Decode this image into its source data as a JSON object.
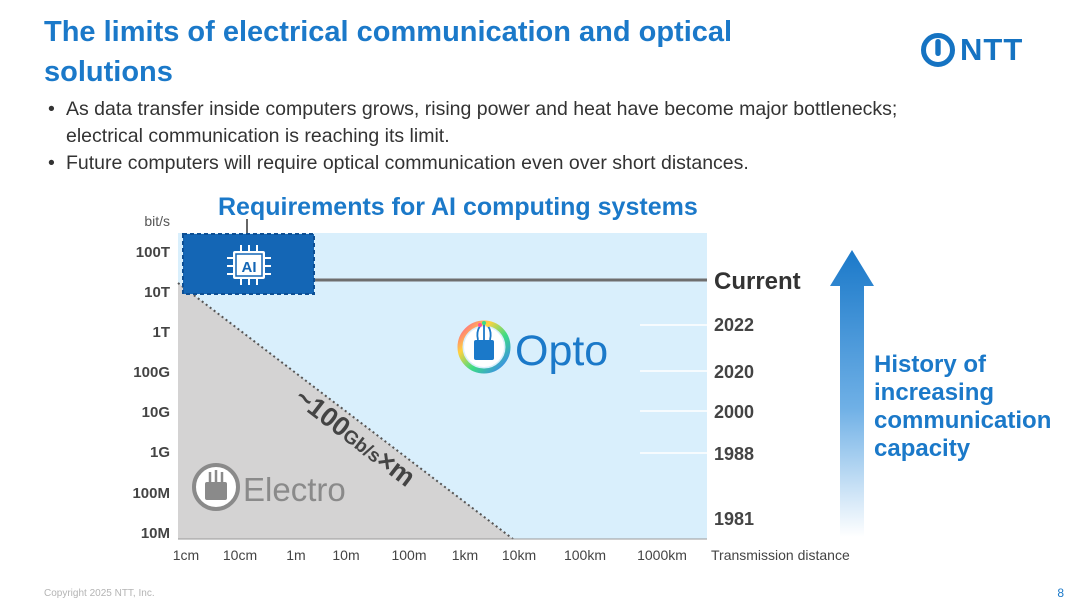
{
  "slide": {
    "title": "The limits of electrical communication and optical solutions",
    "logo_text": "NTT",
    "bullets": [
      "As data transfer inside computers grows, rising power and heat have become major bottlenecks; electrical communication is reaching its limit.",
      "Future computers will require optical communication even over short distances."
    ],
    "copyright": "Copyright 2025 NTT, Inc.",
    "page_number": "8"
  },
  "diagram": {
    "requirements_label": "Requirements for AI computing systems",
    "ai_chip_label": "AI",
    "y_unit": "bit/s",
    "y_ticks": [
      "100T",
      "10T",
      "1T",
      "100G",
      "10G",
      "1G",
      "100M",
      "10M"
    ],
    "x_ticks": [
      "1cm",
      "10cm",
      "1m",
      "10m",
      "100m",
      "1km",
      "10km",
      "100km",
      "1000km"
    ],
    "x_axis_label": "Transmission distance",
    "opto_label": "Opto",
    "electro_label": "Electro",
    "limit_prefix": "~100",
    "limit_unit": "Gb/s",
    "limit_suffix": "×m",
    "current_label": "Current",
    "years": [
      "2022",
      "2020",
      "2000",
      "1988",
      "1981"
    ],
    "history_lines": [
      "History of",
      "increasing",
      "communication",
      "capacity"
    ],
    "colors": {
      "brand_blue": "#1b79c9",
      "opto_region": "#d9effc",
      "electro_region": "#d4d3d3",
      "ai_box": "#1466b5"
    }
  }
}
